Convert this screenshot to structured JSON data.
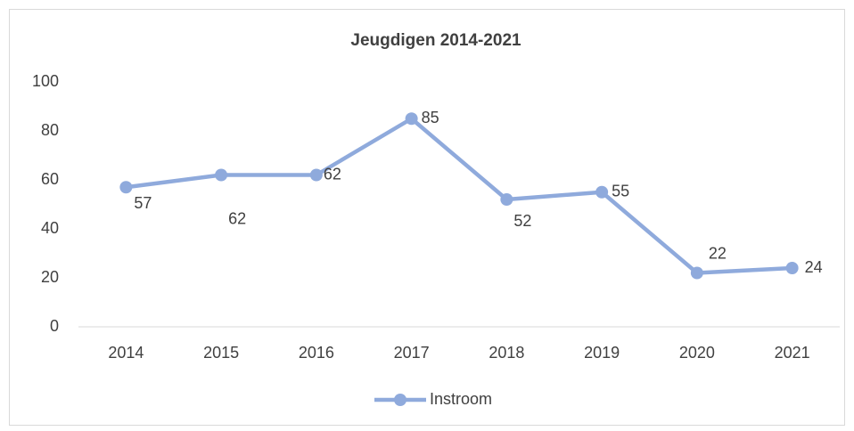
{
  "chart_data": {
    "type": "line",
    "title": "Jeugdigen 2014-2021",
    "categories": [
      "2014",
      "2015",
      "2016",
      "2017",
      "2018",
      "2019",
      "2020",
      "2021"
    ],
    "series": [
      {
        "name": "Instroom",
        "color": "#8faadc",
        "values": [
          57,
          62,
          62,
          85,
          52,
          55,
          22,
          24
        ]
      }
    ],
    "ylim": [
      0,
      100
    ],
    "yticks": [
      0,
      20,
      40,
      60,
      80,
      100
    ],
    "grid": false,
    "legend": "bottom"
  }
}
